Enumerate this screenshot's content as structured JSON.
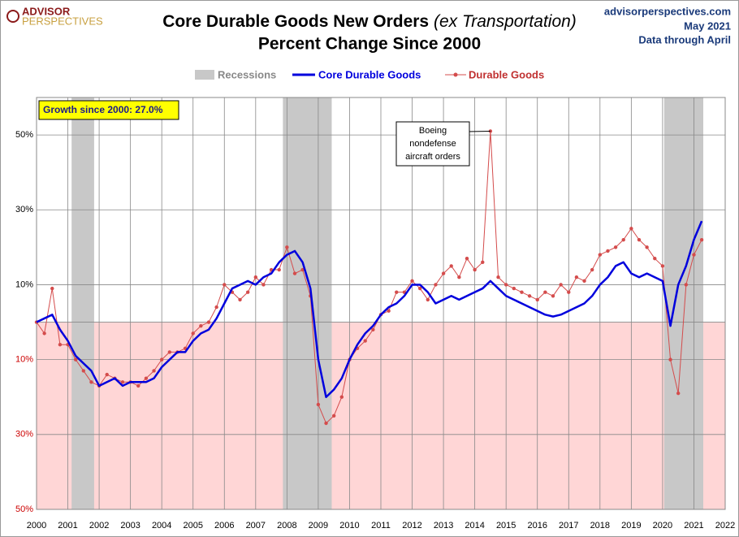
{
  "chart_data": {
    "type": "line",
    "logo": [
      "ADVISOR",
      "PERSPECTIVES"
    ],
    "title": "Core Durable Goods New Orders",
    "title_note": "(ex Transportation)",
    "subtitle": "Percent Change Since 2000",
    "source": [
      "advisorperspectives.com",
      "May 2021",
      "Data through April"
    ],
    "annotations": {
      "growth": "Growth since 2000:  27.0%",
      "callout": [
        "Boeing",
        "nondefense",
        "aircraft orders"
      ]
    },
    "recessions": {
      "name": "Recessions",
      "color": "#c8c8c8",
      "spans": [
        [
          2001.12,
          2001.84
        ],
        [
          2007.87,
          2009.43
        ],
        [
          2020.05,
          2021.3
        ]
      ]
    },
    "x": [
      2000,
      2000.25,
      2000.5,
      2000.75,
      2001,
      2001.25,
      2001.5,
      2001.75,
      2002,
      2002.25,
      2002.5,
      2002.75,
      2003,
      2003.25,
      2003.5,
      2003.75,
      2004,
      2004.25,
      2004.5,
      2004.75,
      2005,
      2005.25,
      2005.5,
      2005.75,
      2006,
      2006.25,
      2006.5,
      2006.75,
      2007,
      2007.25,
      2007.5,
      2007.75,
      2008,
      2008.25,
      2008.5,
      2008.75,
      2009,
      2009.25,
      2009.5,
      2009.75,
      2010,
      2010.25,
      2010.5,
      2010.75,
      2011,
      2011.25,
      2011.5,
      2011.75,
      2012,
      2012.25,
      2012.5,
      2012.75,
      2013,
      2013.25,
      2013.5,
      2013.75,
      2014,
      2014.25,
      2014.5,
      2014.75,
      2015,
      2015.25,
      2015.5,
      2015.75,
      2016,
      2016.25,
      2016.5,
      2016.75,
      2017,
      2017.25,
      2017.5,
      2017.75,
      2018,
      2018.25,
      2018.5,
      2018.75,
      2019,
      2019.25,
      2019.5,
      2019.75,
      2020,
      2020.25,
      2020.5,
      2020.75,
      2021,
      2021.25
    ],
    "series": [
      {
        "name": "Core Durable Goods",
        "color": "#0000dd",
        "values": [
          0,
          1,
          2,
          -2,
          -5,
          -9,
          -11,
          -13,
          -17,
          -16,
          -15,
          -17,
          -16,
          -16,
          -16,
          -15,
          -12,
          -10,
          -8,
          -8,
          -5,
          -3,
          -2,
          1,
          5,
          9,
          10,
          11,
          10,
          12,
          13,
          16,
          18,
          19,
          16,
          9,
          -10,
          -20,
          -18,
          -15,
          -10,
          -6,
          -3,
          -1,
          2,
          4,
          5,
          7,
          10,
          10,
          8,
          5,
          6,
          7,
          6,
          7,
          8,
          9,
          11,
          9,
          7,
          6,
          5,
          4,
          3,
          2,
          1.5,
          2,
          3,
          4,
          5,
          7,
          10,
          12,
          15,
          16,
          13,
          12,
          13,
          12,
          11,
          -1,
          10,
          15,
          22,
          27
        ]
      },
      {
        "name": "Durable Goods",
        "color": "#d44c4c",
        "values": [
          0,
          -3,
          9,
          -6,
          -6,
          -10,
          -13,
          -16,
          -17,
          -14,
          -15,
          -16,
          -16,
          -17,
          -15,
          -13,
          -10,
          -8,
          -8,
          -7,
          -3,
          -1,
          0,
          4,
          10,
          8,
          6,
          8,
          12,
          10,
          14,
          14,
          20,
          13,
          14,
          7,
          -22,
          -27,
          -25,
          -20,
          -10,
          -7,
          -5,
          -2,
          2,
          3,
          8,
          8,
          11,
          9,
          6,
          10,
          13,
          15,
          12,
          17,
          14,
          16,
          51,
          12,
          10,
          9,
          8,
          7,
          6,
          8,
          7,
          10,
          8,
          12,
          11,
          14,
          18,
          19,
          20,
          22,
          25,
          22,
          20,
          17,
          15,
          -10,
          -19,
          10,
          18,
          22
        ]
      }
    ],
    "xlim": [
      2000,
      2022
    ],
    "xticks": [
      2000,
      2001,
      2002,
      2003,
      2004,
      2005,
      2006,
      2007,
      2008,
      2009,
      2010,
      2011,
      2012,
      2013,
      2014,
      2015,
      2016,
      2017,
      2018,
      2019,
      2020,
      2021,
      2022
    ],
    "ylim": [
      -50,
      60
    ],
    "yticks": [
      {
        "value": 50,
        "label": "50%"
      },
      {
        "value": 30,
        "label": "30%"
      },
      {
        "value": 10,
        "label": "10%"
      },
      {
        "value": -10,
        "label": "10%"
      },
      {
        "value": -30,
        "label": "30%"
      },
      {
        "value": -50,
        "label": "50%"
      }
    ],
    "grid": true
  }
}
